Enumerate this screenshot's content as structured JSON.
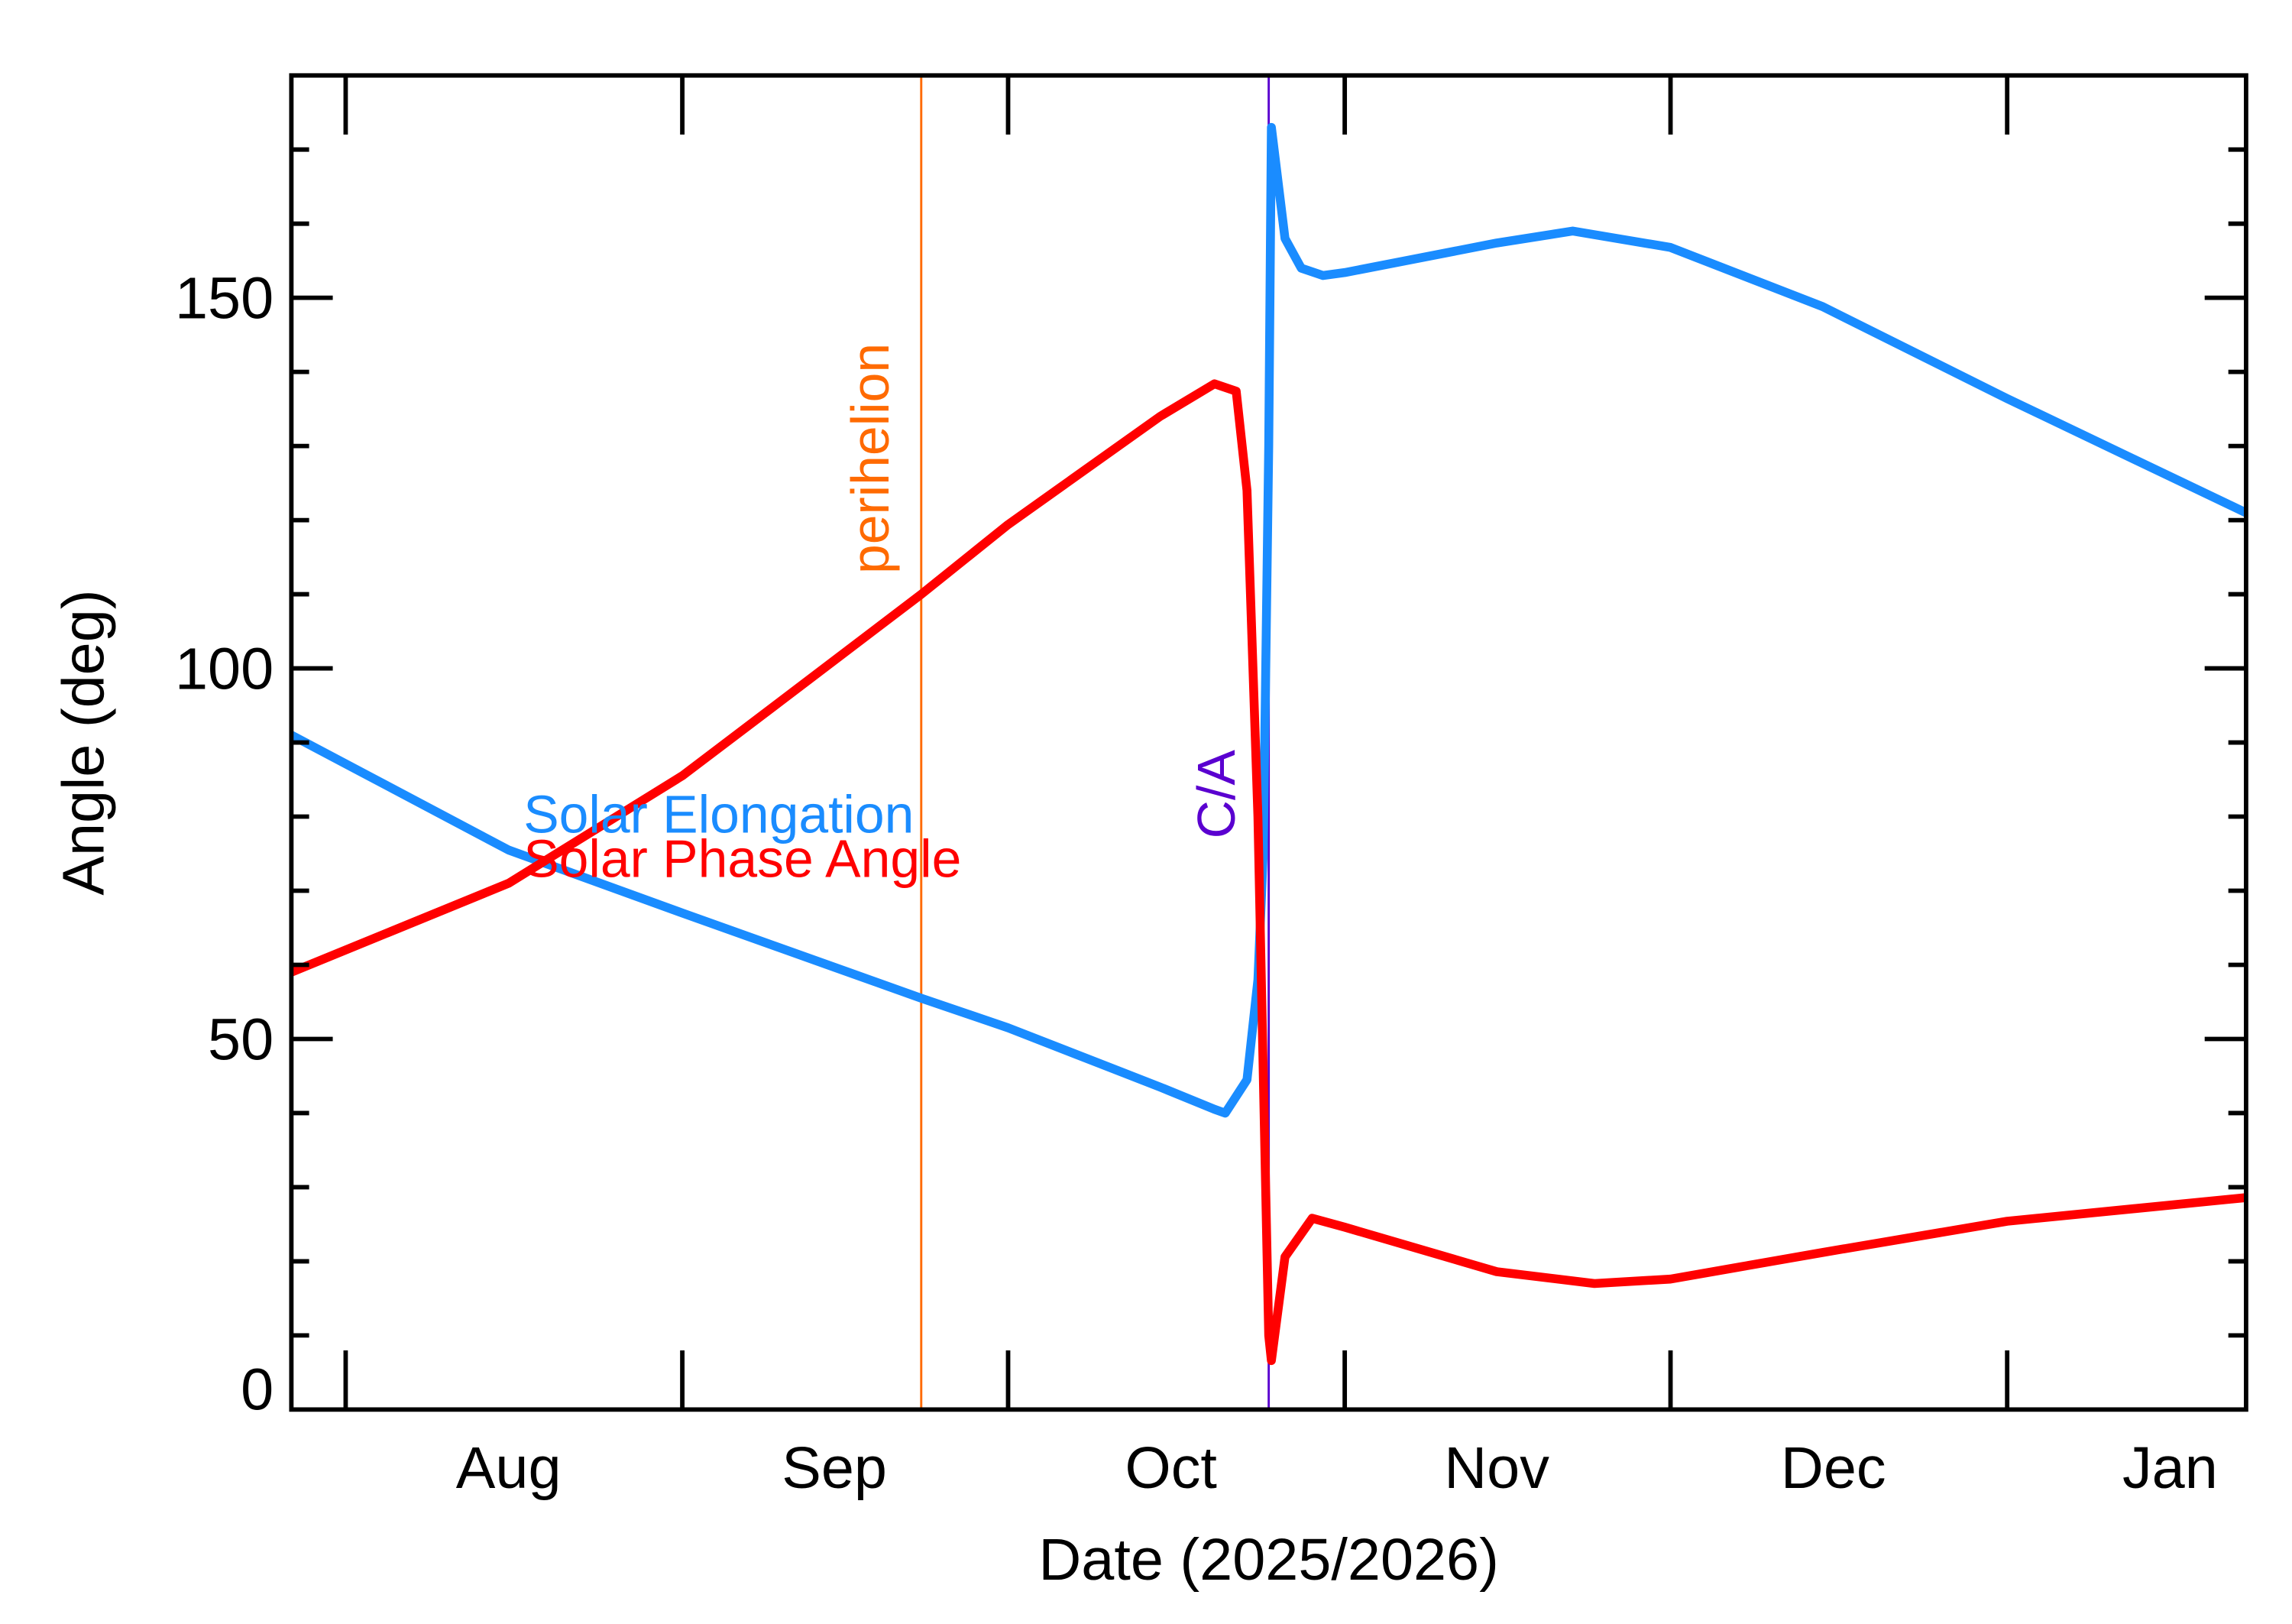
{
  "chart_data": {
    "type": "line",
    "xlabel": "Date (2025/2026)",
    "ylabel": "Angle (deg)",
    "xlim": [
      "2025-07-27",
      "2026-01-23"
    ],
    "ylim": [
      0,
      180
    ],
    "yticks": [
      0,
      50,
      100,
      150
    ],
    "xtick_labels": [
      {
        "label": "Aug",
        "date": "2025-08-16"
      },
      {
        "label": "Sep",
        "date": "2025-09-15"
      },
      {
        "label": "Oct",
        "date": "2025-10-16"
      },
      {
        "label": "Nov",
        "date": "2025-11-15"
      },
      {
        "label": "Dec",
        "date": "2025-12-16"
      },
      {
        "label": "Jan",
        "date": "2026-01-16"
      }
    ],
    "month_ticks": [
      "2025-08-01",
      "2025-09-01",
      "2025-10-01",
      "2025-11-01",
      "2025-12-01",
      "2026-01-01"
    ],
    "grid": false,
    "legend_placement": "center-left",
    "markers": [
      {
        "label": "perihelion",
        "date": "2025-09-23",
        "color": "#ff6a00"
      },
      {
        "label": "C/A",
        "date": "2025-10-25",
        "color": "#5a00d0"
      }
    ],
    "series": [
      {
        "name": "Solar Elongation",
        "color": "#1a8cff",
        "points": [
          [
            "2025-07-27",
            91
          ],
          [
            "2025-08-16",
            75.5
          ],
          [
            "2025-09-01",
            67
          ],
          [
            "2025-09-23",
            55.5
          ],
          [
            "2025-10-01",
            51.5
          ],
          [
            "2025-10-15",
            43.5
          ],
          [
            "2025-10-20",
            40.5
          ],
          [
            "2025-10-21",
            40
          ],
          [
            "2025-10-23",
            44.5
          ],
          [
            "2025-10-24T00:00",
            58
          ],
          [
            "2025-10-24T12:00",
            75
          ],
          [
            "2025-10-25T00:00",
            130
          ],
          [
            "2025-10-25T06:00",
            173
          ],
          [
            "2025-10-26T12:00",
            158
          ],
          [
            "2025-10-28",
            154
          ],
          [
            "2025-10-30",
            153
          ],
          [
            "2025-11-01",
            153.4
          ],
          [
            "2025-11-15",
            157.4
          ],
          [
            "2025-11-22",
            159
          ],
          [
            "2025-12-01",
            156.8
          ],
          [
            "2025-12-15",
            148.8
          ],
          [
            "2026-01-01",
            136.4
          ],
          [
            "2026-01-23",
            121
          ]
        ]
      },
      {
        "name": "Solar Phase Angle",
        "color": "#ff0000",
        "points": [
          [
            "2025-07-27",
            59
          ],
          [
            "2025-08-16",
            71
          ],
          [
            "2025-09-01",
            85.5
          ],
          [
            "2025-09-10",
            95.5
          ],
          [
            "2025-09-23",
            110
          ],
          [
            "2025-10-01",
            119.4
          ],
          [
            "2025-10-15",
            134
          ],
          [
            "2025-10-20",
            138.4
          ],
          [
            "2025-10-22",
            137.4
          ],
          [
            "2025-10-23",
            124
          ],
          [
            "2025-10-24",
            80
          ],
          [
            "2025-10-25",
            10
          ],
          [
            "2025-10-25T06:00",
            6.6
          ],
          [
            "2025-10-26T12:00",
            20.6
          ],
          [
            "2025-10-29",
            25.8
          ],
          [
            "2025-11-01",
            24.6
          ],
          [
            "2025-11-15",
            18.6
          ],
          [
            "2025-11-24",
            17
          ],
          [
            "2025-12-01",
            17.6
          ],
          [
            "2025-12-15",
            21.2
          ],
          [
            "2026-01-01",
            25.4
          ],
          [
            "2026-01-23",
            28.6
          ]
        ]
      }
    ]
  }
}
